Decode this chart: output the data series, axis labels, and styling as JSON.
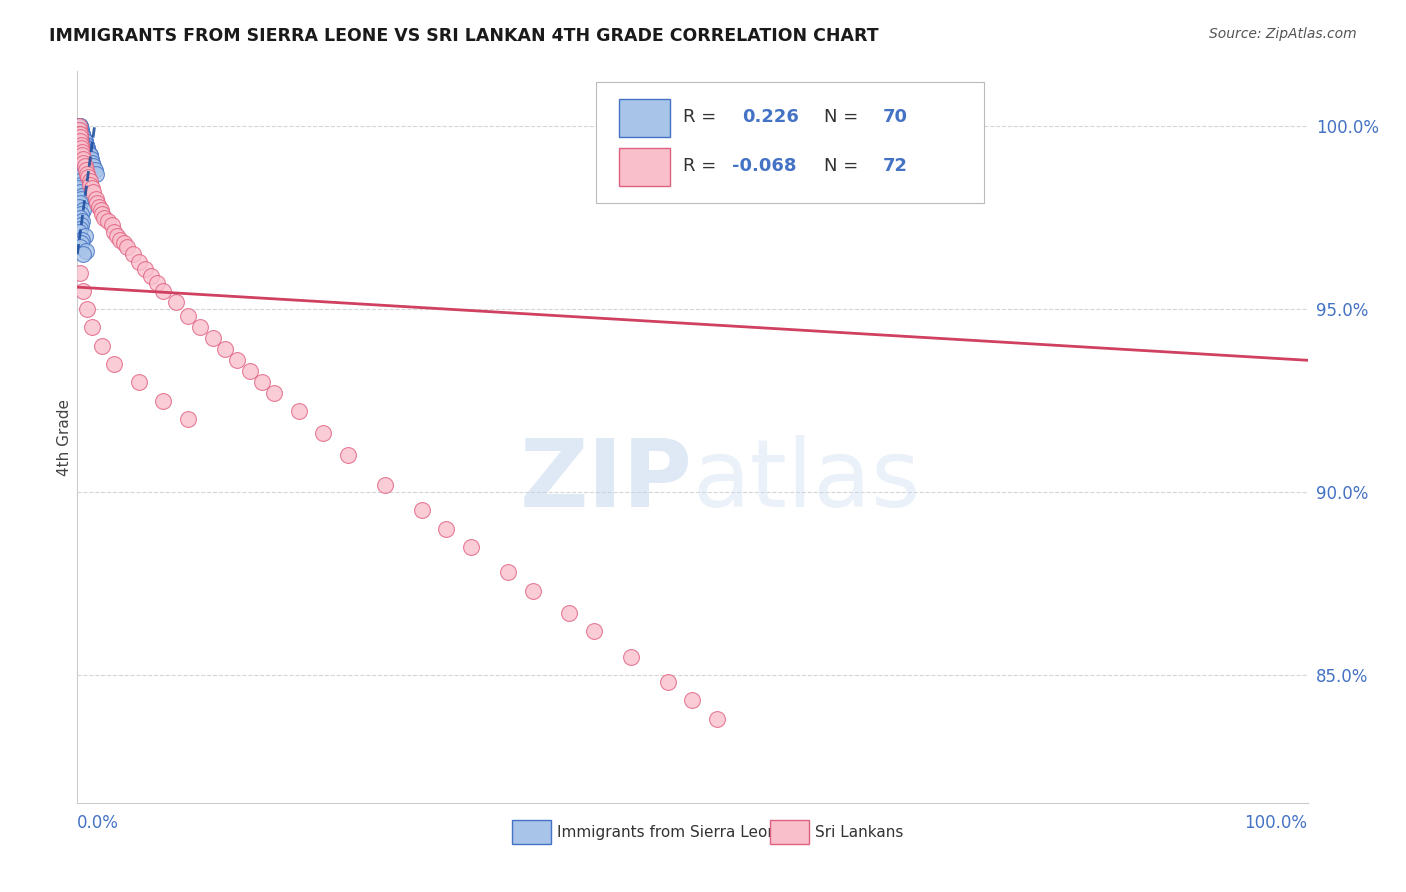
{
  "title": "IMMIGRANTS FROM SIERRA LEONE VS SRI LANKAN 4TH GRADE CORRELATION CHART",
  "source": "Source: ZipAtlas.com",
  "ylabel": "4th Grade",
  "y_tick_labels": [
    "85.0%",
    "90.0%",
    "95.0%",
    "100.0%"
  ],
  "y_tick_values": [
    0.85,
    0.9,
    0.95,
    1.0
  ],
  "x_range": [
    0.0,
    1.0
  ],
  "y_min": 0.815,
  "y_max": 1.015,
  "legend_blue_R": "0.226",
  "legend_blue_N": "70",
  "legend_pink_R": "-0.068",
  "legend_pink_N": "72",
  "blue_scatter_color": "#a8c4e8",
  "blue_edge_color": "#4472c4",
  "pink_scatter_color": "#f9c0cc",
  "pink_edge_color": "#e06080",
  "blue_line_color": "#2050a0",
  "pink_line_color": "#d04060",
  "watermark_color": "#dce8f5",
  "grid_color": "#cccccc",
  "tick_label_color": "#4472c4",
  "title_color": "#1a1a1a",
  "source_color": "#555555",
  "legend_label_color": "#333333",
  "bottom_legend_label_color": "#333333",
  "blue_scatter_x": [
    0.0005,
    0.001,
    0.001,
    0.001,
    0.0015,
    0.002,
    0.002,
    0.002,
    0.002,
    0.003,
    0.003,
    0.003,
    0.003,
    0.004,
    0.004,
    0.004,
    0.004,
    0.005,
    0.005,
    0.005,
    0.006,
    0.006,
    0.006,
    0.007,
    0.007,
    0.008,
    0.008,
    0.009,
    0.009,
    0.01,
    0.01,
    0.011,
    0.012,
    0.013,
    0.014,
    0.015,
    0.001,
    0.002,
    0.003,
    0.004,
    0.001,
    0.002,
    0.003,
    0.001,
    0.002,
    0.001,
    0.003,
    0.002,
    0.001,
    0.002,
    0.003,
    0.001,
    0.002,
    0.004,
    0.003,
    0.002,
    0.001,
    0.005,
    0.003,
    0.002,
    0.004,
    0.003,
    0.002,
    0.001,
    0.006,
    0.004,
    0.003,
    0.002,
    0.007,
    0.005
  ],
  "blue_scatter_y": [
    1.0,
    1.0,
    1.0,
    1.0,
    1.0,
    1.0,
    1.0,
    0.999,
    0.999,
    0.999,
    0.999,
    0.999,
    0.998,
    0.998,
    0.998,
    0.997,
    0.997,
    0.997,
    0.997,
    0.996,
    0.996,
    0.996,
    0.995,
    0.995,
    0.995,
    0.994,
    0.994,
    0.993,
    0.993,
    0.992,
    0.992,
    0.991,
    0.99,
    0.989,
    0.988,
    0.987,
    0.998,
    0.997,
    0.996,
    0.995,
    0.994,
    0.993,
    0.992,
    0.991,
    0.99,
    0.989,
    0.988,
    0.987,
    0.986,
    0.985,
    0.984,
    0.983,
    0.982,
    0.981,
    0.98,
    0.979,
    0.978,
    0.977,
    0.976,
    0.975,
    0.974,
    0.973,
    0.972,
    0.971,
    0.97,
    0.969,
    0.968,
    0.967,
    0.966,
    0.965
  ],
  "pink_scatter_x": [
    0.001,
    0.001,
    0.001,
    0.002,
    0.002,
    0.002,
    0.003,
    0.003,
    0.004,
    0.004,
    0.005,
    0.005,
    0.006,
    0.007,
    0.008,
    0.009,
    0.01,
    0.01,
    0.012,
    0.013,
    0.015,
    0.016,
    0.018,
    0.019,
    0.02,
    0.022,
    0.025,
    0.028,
    0.03,
    0.032,
    0.035,
    0.038,
    0.04,
    0.045,
    0.05,
    0.055,
    0.06,
    0.065,
    0.07,
    0.08,
    0.09,
    0.1,
    0.11,
    0.12,
    0.13,
    0.14,
    0.15,
    0.16,
    0.18,
    0.2,
    0.22,
    0.25,
    0.28,
    0.3,
    0.32,
    0.35,
    0.37,
    0.4,
    0.42,
    0.45,
    0.48,
    0.5,
    0.52,
    0.002,
    0.005,
    0.008,
    0.012,
    0.02,
    0.03,
    0.05,
    0.07,
    0.09
  ],
  "pink_scatter_y": [
    1.0,
    0.999,
    0.998,
    0.998,
    0.997,
    0.996,
    0.995,
    0.994,
    0.993,
    0.992,
    0.991,
    0.99,
    0.989,
    0.988,
    0.987,
    0.986,
    0.985,
    0.984,
    0.983,
    0.982,
    0.98,
    0.979,
    0.978,
    0.977,
    0.976,
    0.975,
    0.974,
    0.973,
    0.971,
    0.97,
    0.969,
    0.968,
    0.967,
    0.965,
    0.963,
    0.961,
    0.959,
    0.957,
    0.955,
    0.952,
    0.948,
    0.945,
    0.942,
    0.939,
    0.936,
    0.933,
    0.93,
    0.927,
    0.922,
    0.916,
    0.91,
    0.902,
    0.895,
    0.89,
    0.885,
    0.878,
    0.873,
    0.867,
    0.862,
    0.855,
    0.848,
    0.843,
    0.838,
    0.96,
    0.955,
    0.95,
    0.945,
    0.94,
    0.935,
    0.93,
    0.925,
    0.92
  ],
  "blue_line_x": [
    0.0,
    0.014
  ],
  "blue_line_y": [
    0.965,
    1.0
  ],
  "pink_line_x": [
    0.0,
    1.0
  ],
  "pink_line_y": [
    0.956,
    0.936
  ]
}
